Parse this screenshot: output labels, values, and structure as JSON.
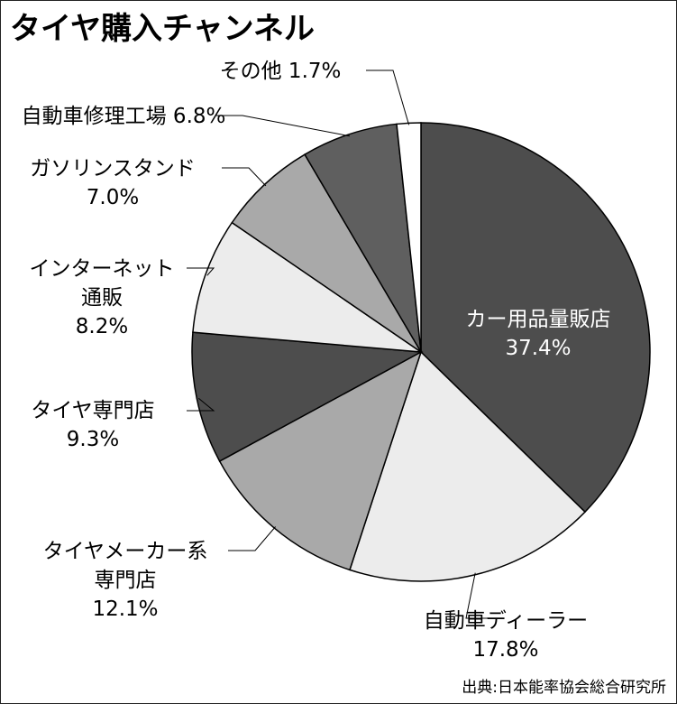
{
  "chart_data": {
    "type": "pie",
    "title": "タイヤ購入チャンネル",
    "source": "出典:日本能率協会総合研究所",
    "slices": [
      {
        "label_lines": [
          "カー用品量販店"
        ],
        "value_text": "37.4%",
        "value": 37.4,
        "color": "#4d4d4d"
      },
      {
        "label_lines": [
          "自動車ディーラー"
        ],
        "value_text": "17.8%",
        "value": 17.8,
        "color": "#ececec"
      },
      {
        "label_lines": [
          "タイヤメーカー系",
          "専門店"
        ],
        "value_text": "12.1%",
        "value": 12.1,
        "color": "#a9a9a9"
      },
      {
        "label_lines": [
          "タイヤ専門店"
        ],
        "value_text": "9.3%",
        "value": 9.3,
        "color": "#4d4d4d"
      },
      {
        "label_lines": [
          "インターネット",
          "通販"
        ],
        "value_text": "8.2%",
        "value": 8.2,
        "color": "#ececec"
      },
      {
        "label_lines": [
          "ガソリンスタンド"
        ],
        "value_text": "7.0%",
        "value": 7.0,
        "color": "#a9a9a9"
      },
      {
        "label_lines": [
          "自動車修理工場"
        ],
        "value_text": "6.8%",
        "value": 6.8,
        "color": "#5f5f5f"
      },
      {
        "label_lines": [
          "その他"
        ],
        "value_text": "1.7%",
        "value": 1.7,
        "color": "#ffffff"
      }
    ]
  }
}
